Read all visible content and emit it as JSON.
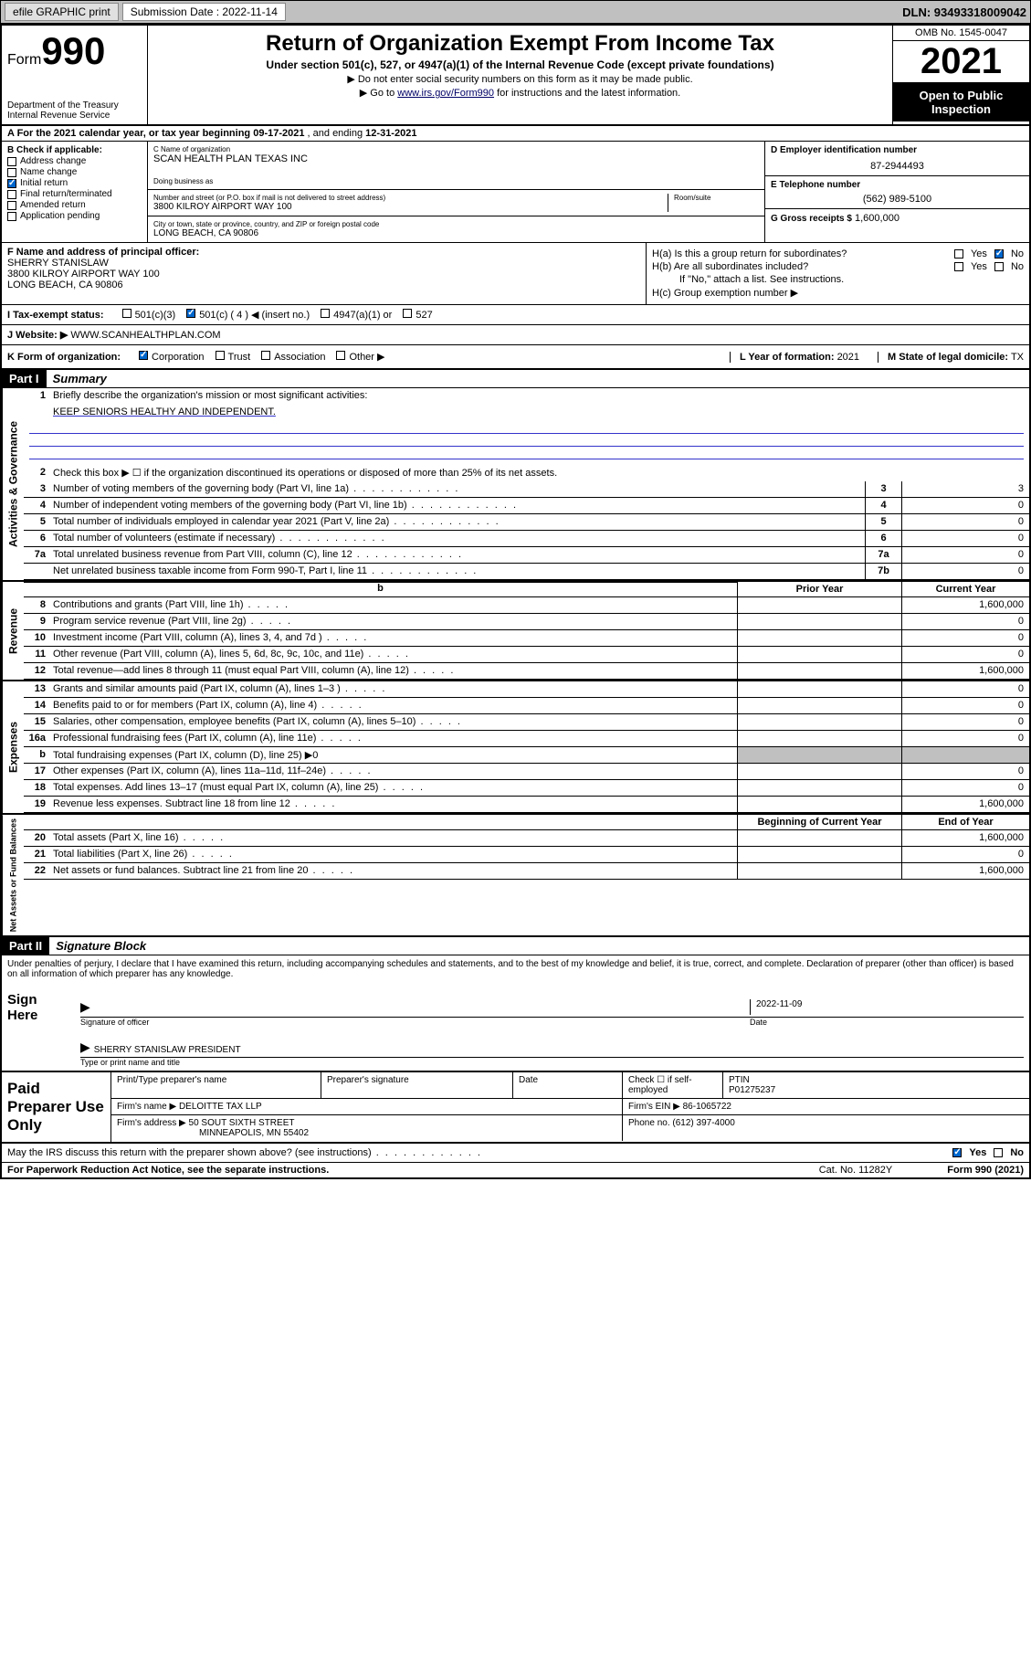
{
  "topbar": {
    "efile": "efile GRAPHIC print",
    "submission_label": "Submission Date : 2022-11-14",
    "dln": "DLN: 93493318009042"
  },
  "header": {
    "form_word": "Form",
    "form_num": "990",
    "dept": "Department of the Treasury\nInternal Revenue Service",
    "title": "Return of Organization Exempt From Income Tax",
    "subtitle": "Under section 501(c), 527, or 4947(a)(1) of the Internal Revenue Code (except private foundations)",
    "note1": "▶ Do not enter social security numbers on this form as it may be made public.",
    "note2_pre": "▶ Go to ",
    "note2_link": "www.irs.gov/Form990",
    "note2_post": " for instructions and the latest information.",
    "omb": "OMB No. 1545-0047",
    "year": "2021",
    "open": "Open to Public Inspection"
  },
  "rowA": {
    "text_pre": "A For the 2021 calendar year, or tax year beginning ",
    "begin": "09-17-2021",
    "mid": " , and ending ",
    "end": "12-31-2021"
  },
  "colB": {
    "title": "B Check if applicable:",
    "items": [
      "Address change",
      "Name change",
      "Initial return",
      "Final return/terminated",
      "Amended return",
      "Application pending"
    ],
    "checked_idx": 2
  },
  "colC": {
    "name_lbl": "C Name of organization",
    "name": "SCAN HEALTH PLAN TEXAS INC",
    "dba_lbl": "Doing business as",
    "addr_lbl": "Number and street (or P.O. box if mail is not delivered to street address)",
    "addr": "3800 KILROY AIRPORT WAY 100",
    "room_lbl": "Room/suite",
    "city_lbl": "City or town, state or province, country, and ZIP or foreign postal code",
    "city": "LONG BEACH, CA  90806"
  },
  "colD": {
    "lbl": "D Employer identification number",
    "val": "87-2944493"
  },
  "colE": {
    "lbl": "E Telephone number",
    "val": "(562) 989-5100"
  },
  "colG": {
    "lbl": "G Gross receipts $",
    "val": "1,600,000"
  },
  "colF": {
    "lbl": "F Name and address of principal officer:",
    "name": "SHERRY STANISLAW",
    "addr1": "3800 KILROY AIRPORT WAY 100",
    "addr2": "LONG BEACH, CA  90806"
  },
  "colH": {
    "ha": "H(a)  Is this a group return for subordinates?",
    "hb": "H(b)  Are all subordinates included?",
    "hb_note": "If \"No,\" attach a list. See instructions.",
    "hc": "H(c)  Group exemption number ▶",
    "yes": "Yes",
    "no": "No"
  },
  "rowI": {
    "lbl": "I   Tax-exempt status:",
    "opts": [
      "501(c)(3)",
      "501(c) ( 4 ) ◀ (insert no.)",
      "4947(a)(1) or",
      "527"
    ],
    "checked_idx": 1
  },
  "rowJ": {
    "lbl": "J   Website: ▶",
    "val": "WWW.SCANHEALTHPLAN.COM"
  },
  "rowK": {
    "lbl": "K Form of organization:",
    "opts": [
      "Corporation",
      "Trust",
      "Association",
      "Other ▶"
    ],
    "checked_idx": 0,
    "L_lbl": "L Year of formation:",
    "L_val": "2021",
    "M_lbl": "M State of legal domicile:",
    "M_val": "TX"
  },
  "part1": {
    "part": "Part I",
    "title": "Summary",
    "q1": "Briefly describe the organization's mission or most significant activities:",
    "mission": "KEEP SENIORS HEALTHY AND INDEPENDENT.",
    "q2": "Check this box ▶ ☐  if the organization discontinued its operations or disposed of more than 25% of its net assets.",
    "lines_gov": [
      {
        "n": "3",
        "t": "Number of voting members of the governing body (Part VI, line 1a)",
        "c": "3",
        "v": "3"
      },
      {
        "n": "4",
        "t": "Number of independent voting members of the governing body (Part VI, line 1b)",
        "c": "4",
        "v": "0"
      },
      {
        "n": "5",
        "t": "Total number of individuals employed in calendar year 2021 (Part V, line 2a)",
        "c": "5",
        "v": "0"
      },
      {
        "n": "6",
        "t": "Total number of volunteers (estimate if necessary)",
        "c": "6",
        "v": "0"
      },
      {
        "n": "7a",
        "t": "Total unrelated business revenue from Part VIII, column (C), line 12",
        "c": "7a",
        "v": "0"
      },
      {
        "n": "",
        "t": "Net unrelated business taxable income from Form 990-T, Part I, line 11",
        "c": "7b",
        "v": "0"
      }
    ],
    "prior": "Prior Year",
    "current": "Current Year",
    "lines_rev": [
      {
        "n": "8",
        "t": "Contributions and grants (Part VIII, line 1h)",
        "p": "",
        "c": "1,600,000"
      },
      {
        "n": "9",
        "t": "Program service revenue (Part VIII, line 2g)",
        "p": "",
        "c": "0"
      },
      {
        "n": "10",
        "t": "Investment income (Part VIII, column (A), lines 3, 4, and 7d )",
        "p": "",
        "c": "0"
      },
      {
        "n": "11",
        "t": "Other revenue (Part VIII, column (A), lines 5, 6d, 8c, 9c, 10c, and 11e)",
        "p": "",
        "c": "0"
      },
      {
        "n": "12",
        "t": "Total revenue—add lines 8 through 11 (must equal Part VIII, column (A), line 12)",
        "p": "",
        "c": "1,600,000"
      }
    ],
    "lines_exp": [
      {
        "n": "13",
        "t": "Grants and similar amounts paid (Part IX, column (A), lines 1–3 )",
        "p": "",
        "c": "0"
      },
      {
        "n": "14",
        "t": "Benefits paid to or for members (Part IX, column (A), line 4)",
        "p": "",
        "c": "0"
      },
      {
        "n": "15",
        "t": "Salaries, other compensation, employee benefits (Part IX, column (A), lines 5–10)",
        "p": "",
        "c": "0"
      },
      {
        "n": "16a",
        "t": "Professional fundraising fees (Part IX, column (A), line 11e)",
        "p": "",
        "c": "0"
      },
      {
        "n": "b",
        "t": "Total fundraising expenses (Part IX, column (D), line 25) ▶0",
        "p": "shaded",
        "c": "shaded"
      },
      {
        "n": "17",
        "t": "Other expenses (Part IX, column (A), lines 11a–11d, 11f–24e)",
        "p": "",
        "c": "0"
      },
      {
        "n": "18",
        "t": "Total expenses. Add lines 13–17 (must equal Part IX, column (A), line 25)",
        "p": "",
        "c": "0"
      },
      {
        "n": "19",
        "t": "Revenue less expenses. Subtract line 18 from line 12",
        "p": "",
        "c": "1,600,000"
      }
    ],
    "begin": "Beginning of Current Year",
    "end": "End of Year",
    "lines_net": [
      {
        "n": "20",
        "t": "Total assets (Part X, line 16)",
        "p": "",
        "c": "1,600,000"
      },
      {
        "n": "21",
        "t": "Total liabilities (Part X, line 26)",
        "p": "",
        "c": "0"
      },
      {
        "n": "22",
        "t": "Net assets or fund balances. Subtract line 21 from line 20",
        "p": "",
        "c": "1,600,000"
      }
    ],
    "vlabels": [
      "Activities & Governance",
      "Revenue",
      "Expenses",
      "Net Assets or Fund Balances"
    ]
  },
  "part2": {
    "part": "Part II",
    "title": "Signature Block",
    "decl": "Under penalties of perjury, I declare that I have examined this return, including accompanying schedules and statements, and to the best of my knowledge and belief, it is true, correct, and complete. Declaration of preparer (other than officer) is based on all information of which preparer has any knowledge.",
    "sign_here": "Sign Here",
    "sig_officer": "Signature of officer",
    "sig_date": "2022-11-09",
    "date_lbl": "Date",
    "name_title": "SHERRY STANISLAW  PRESIDENT",
    "type_lbl": "Type or print name and title"
  },
  "prep": {
    "title": "Paid Preparer Use Only",
    "r1": {
      "c1": "Print/Type preparer's name",
      "c2": "Preparer's signature",
      "c3": "Date",
      "c4_lbl": "Check ☐ if self-employed",
      "c5_lbl": "PTIN",
      "c5_val": "P01275237"
    },
    "r2": {
      "lbl": "Firm's name    ▶",
      "val": "DELOITTE TAX LLP",
      "ein_lbl": "Firm's EIN ▶",
      "ein": "86-1065722"
    },
    "r3": {
      "lbl": "Firm's address ▶",
      "val1": "50 SOUT SIXTH STREET",
      "val2": "MINNEAPOLIS, MN  55402",
      "ph_lbl": "Phone no.",
      "ph": "(612) 397-4000"
    }
  },
  "footer": {
    "discuss": "May the IRS discuss this return with the preparer shown above? (see instructions)",
    "yes": "Yes",
    "no": "No",
    "pra": "For Paperwork Reduction Act Notice, see the separate instructions.",
    "cat": "Cat. No. 11282Y",
    "form": "Form 990 (2021)"
  }
}
